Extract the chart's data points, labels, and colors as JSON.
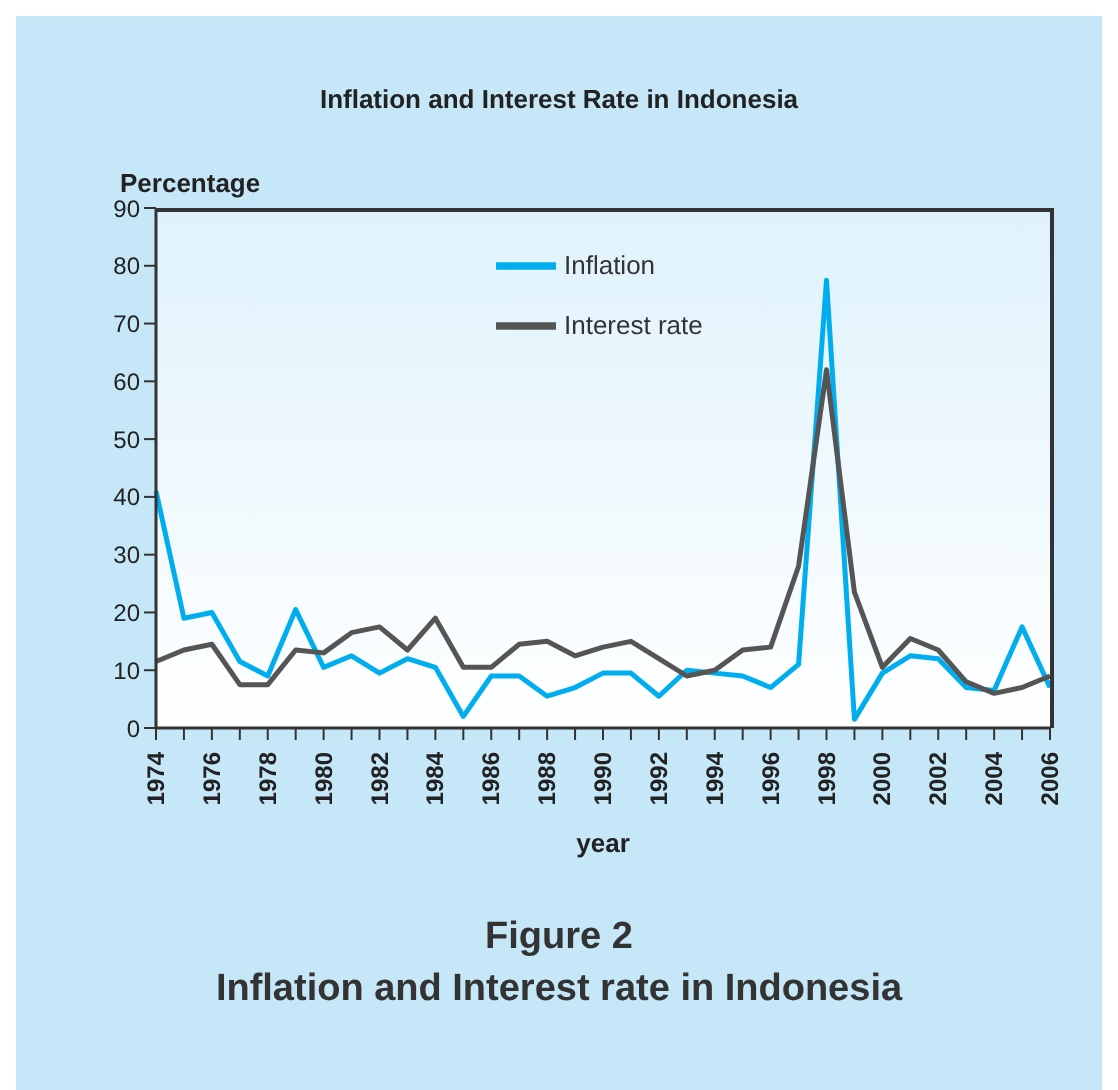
{
  "chart_data": {
    "type": "line",
    "title": "Inflation and Interest Rate in Indonesia",
    "ylabel": "Percentage",
    "xlabel": "year",
    "categories": [
      "1974",
      null,
      "1976",
      null,
      "1978",
      null,
      "1980",
      null,
      "1982",
      null,
      "1984",
      null,
      "1986",
      null,
      "1988",
      null,
      "1990",
      null,
      "1992",
      null,
      "1994",
      null,
      "1996",
      null,
      "1998",
      null,
      "2000",
      null,
      "2002",
      null,
      "2004",
      null,
      "2006"
    ],
    "series": [
      {
        "name": "Inflation",
        "color": "#00aeef",
        "values": [
          41,
          19,
          20,
          11.5,
          9,
          20.5,
          10.5,
          12.5,
          9.5,
          12,
          10.5,
          2,
          9,
          9,
          5.5,
          7,
          9.5,
          9.5,
          5.5,
          10,
          9.5,
          9,
          7,
          11,
          77.5,
          1.5,
          9.5,
          12.5,
          12,
          7,
          6.5,
          17.5,
          7
        ]
      },
      {
        "name": "Interest rate",
        "color": "#555555",
        "values": [
          11.5,
          13.5,
          14.5,
          7.5,
          7.5,
          13.5,
          13,
          16.5,
          17.5,
          13.5,
          19,
          10.5,
          10.5,
          14.5,
          15,
          12.5,
          14,
          15,
          12,
          9,
          10,
          13.5,
          14,
          28,
          62,
          23.5,
          10.5,
          15.5,
          13.5,
          8,
          6,
          7,
          9
        ]
      }
    ],
    "ylim": [
      0,
      90
    ],
    "yticks": [
      0,
      10,
      20,
      30,
      40,
      50,
      60,
      70,
      80,
      90
    ],
    "grid": false,
    "legend": "top",
    "line_style": "solid",
    "marker": "none",
    "annotations": [
      "Figure 2",
      "Inflation and Interest rate in Indonesia"
    ]
  }
}
